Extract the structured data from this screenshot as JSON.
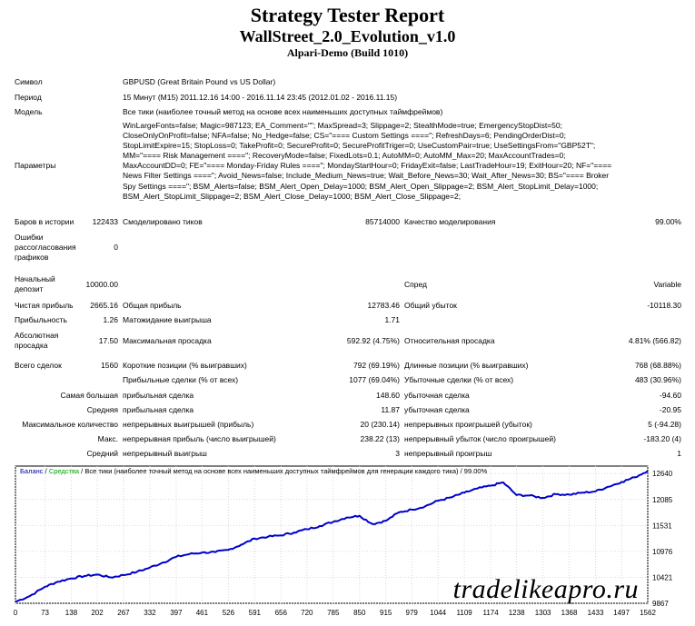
{
  "header": {
    "title": "Strategy Tester Report",
    "subtitle": "WallStreet_2.0_Evolution_v1.0",
    "server": "Alpari-Demo (Build 1010)"
  },
  "info": {
    "symbol_label": "Символ",
    "symbol_value": "GBPUSD (Great Britain Pound vs US Dollar)",
    "period_label": "Период",
    "period_value": "15 Минут (M15) 2011.12.16 14:00 - 2016.11.14 23:45 (2012.01.02 - 2016.11.15)",
    "model_label": "Модель",
    "model_value": "Все тики (наиболее точный метод на основе всех наименьших доступных таймфреймов)",
    "params_label": "Параметры",
    "params_lines": [
      "WinLargeFonts=false; Magic=987123; EA_Comment=\"\"; MaxSpread=3; Slippage=2; StealthMode=true; EmergencyStopDist=50;",
      "CloseOnlyOnProfit=false; NFA=false; No_Hedge=false; CS=\"==== Custom Settings ====\"; RefreshDays=6; PendingOrderDist=0;",
      "StopLimitExpire=15; StopLoss=0; TakeProfit=0; SecureProfit=0; SecureProfitTriger=0; UseCustomPair=true; UseSettingsFrom=\"GBP52T\";",
      "MM=\"==== Risk Management ====\"; RecoveryMode=false; FixedLots=0.1; AutoMM=0; AutoMM_Max=20; MaxAccountTrades=0;",
      "MaxAccountDD=0; FE=\"==== Monday-Friday Rules ====\"; MondayStartHour=0; FridayExit=false; LastTradeHour=19; ExitHour=20; NF=\"====",
      "News Filter Settings ====\"; Avoid_News=false; Include_Medium_News=true; Wait_Before_News=30; Wait_After_News=30; BS=\"==== Broker",
      "Spy Settings ====\"; BSM_Alerts=false; BSM_Alert_Open_Delay=1000; BSM_Alert_Open_Slippage=2; BSM_Alert_StopLimit_Delay=1000;",
      "BSM_Alert_StopLimit_Slippage=2; BSM_Alert_Close_Delay=1000; BSM_Alert_Close_Slippage=2;"
    ]
  },
  "stats": {
    "bars_label": "Баров в истории",
    "bars_value": "122433",
    "ticks_label": "Смоделировано тиков",
    "ticks_value": "85714000",
    "quality_label": "Качество моделирования",
    "quality_value": "99.00%",
    "errors_label_1": "Ошибки",
    "errors_label_2": "рассогласования",
    "errors_label_3": "графиков",
    "errors_value": "0",
    "deposit_label_1": "Начальный",
    "deposit_label_2": "депозит",
    "deposit_value": "10000.00",
    "spread_label": "Спред",
    "spread_value": "Variable",
    "net_label": "Чистая прибыль",
    "net_value": "2665.16",
    "gross_profit_label": "Общая прибыль",
    "gross_profit_value": "12783.46",
    "gross_loss_label": "Общий убыток",
    "gross_loss_value": "-10118.30",
    "pf_label": "Прибыльность",
    "pf_value": "1.26",
    "payoff_label": "Матожидание выигрыша",
    "payoff_value": "1.71",
    "absdd_label_1": "Абсолютная",
    "absdd_label_2": "просадка",
    "absdd_value": "17.50",
    "maxdd_label": "Максимальная просадка",
    "maxdd_value": "592.92 (4.75%)",
    "reldd_label": "Относительная просадка",
    "reldd_value": "4.81% (566.82)",
    "trades_label": "Всего сделок",
    "trades_value": "1560",
    "short_label": "Короткие позиции (% выигравших)",
    "short_value": "792 (69.19%)",
    "long_label": "Длинные позиции (% выигравших)",
    "long_value": "768 (68.88%)",
    "profit_trades_label": "Прибыльные сделки (% от всех)",
    "profit_trades_value": "1077 (69.04%)",
    "loss_trades_label": "Убыточные сделки (% от всех)",
    "loss_trades_value": "483 (30.96%)",
    "largest_label_a": "Самая большая",
    "largest_label_b": "прибыльная сделка",
    "largest_profit": "148.60",
    "largest_loss_label": "убыточная сделка",
    "largest_loss": "-94.60",
    "avg_label_a": "Средняя",
    "avg_label_b": "прибыльная сделка",
    "avg_profit": "11.87",
    "avg_loss_label": "убыточная сделка",
    "avg_loss": "-20.95",
    "maxcons_label_a": "Максимальное количество",
    "maxcons_label_b": "непрерывных выигрышей (прибыль)",
    "maxcons_wins": "20 (230.14)",
    "maxcons_loss_label": "непрерывных проигрышей (убыток)",
    "maxcons_losses": "5 (-94.28)",
    "maxprofit_label_a": "Макс.",
    "maxprofit_label_b": "непрерывная прибыль (число выигрышей)",
    "maxprofit_value": "238.22 (13)",
    "maxloss_label": "непрерывный убыток (число проигрышей)",
    "maxloss_value": "-183.20 (4)",
    "avgcons_label_a": "Средний",
    "avgcons_label_b": "непрерывный выигрыш",
    "avgcons_wins": "3",
    "avgcons_loss_label": "непрерывный проигрыш",
    "avgcons_losses": "1"
  },
  "chart_data": {
    "type": "line",
    "legend_balance": "Баланс",
    "legend_equity": "Средства",
    "legend_rest": "Все тики (наиболее точный метод на основе всех наименьших доступных таймфреймов для генерации каждого тика)",
    "legend_quality": "99.00%",
    "colors": {
      "balance": "#0000cc",
      "equity": "#00a000",
      "frame": "#000000",
      "grid": "#c0c0c0",
      "legend_text": "#0000aa"
    },
    "yticks": [
      12640,
      12085,
      11531,
      10976,
      10421,
      9867
    ],
    "ylim": [
      9867,
      12800
    ],
    "xticks": [
      0,
      73,
      138,
      202,
      267,
      332,
      397,
      461,
      526,
      591,
      656,
      720,
      785,
      850,
      915,
      979,
      1044,
      1109,
      1174,
      1238,
      1303,
      1368,
      1433,
      1497,
      1562
    ],
    "xlim": [
      0,
      1562
    ],
    "x": [
      0,
      35,
      73,
      105,
      138,
      170,
      202,
      235,
      267,
      300,
      332,
      365,
      397,
      430,
      461,
      494,
      526,
      558,
      591,
      624,
      656,
      688,
      720,
      752,
      785,
      818,
      850,
      882,
      915,
      947,
      979,
      1012,
      1044,
      1076,
      1109,
      1141,
      1174,
      1205,
      1238,
      1270,
      1303,
      1335,
      1368,
      1400,
      1433,
      1465,
      1497,
      1530,
      1562
    ],
    "balance": [
      9900,
      10020,
      10220,
      10330,
      10400,
      10450,
      10480,
      10420,
      10470,
      10540,
      10630,
      10740,
      10860,
      10920,
      10950,
      10960,
      11010,
      11120,
      11250,
      11290,
      11320,
      11380,
      11450,
      11520,
      11610,
      11700,
      11740,
      11560,
      11630,
      11810,
      11870,
      11940,
      12060,
      12130,
      12230,
      12320,
      12380,
      12450,
      12180,
      12170,
      12120,
      12200,
      12190,
      12230,
      12260,
      12360,
      12460,
      12560,
      12700
    ]
  },
  "watermark": "tradelikeapro.ru"
}
